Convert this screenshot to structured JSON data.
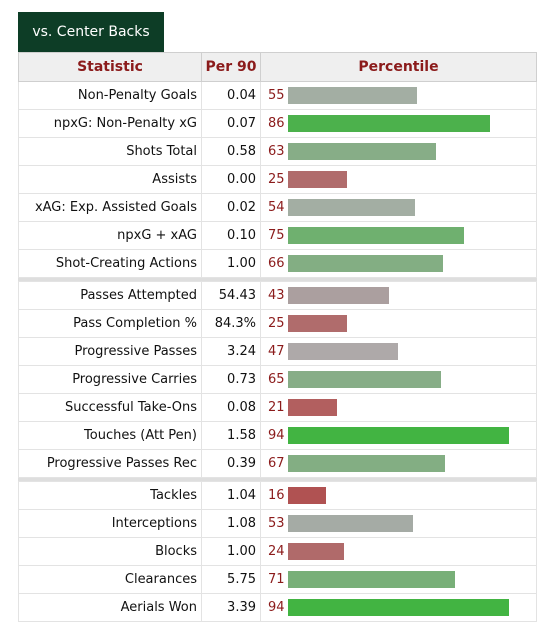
{
  "tab_label": "vs. Center Backs",
  "headers": {
    "statistic": "Statistic",
    "per90": "Per 90",
    "percentile": "Percentile"
  },
  "groups": [
    [
      {
        "stat": "Non-Penalty Goals",
        "per90": "0.04",
        "percentile": 55,
        "color": "#a3aea3"
      },
      {
        "stat": "npxG: Non-Penalty xG",
        "per90": "0.07",
        "percentile": 86,
        "color": "#4cb14c"
      },
      {
        "stat": "Shots Total",
        "per90": "0.58",
        "percentile": 63,
        "color": "#87ad87"
      },
      {
        "stat": "Assists",
        "per90": "0.00",
        "percentile": 25,
        "color": "#b06c6c"
      },
      {
        "stat": "xAG: Exp. Assisted Goals",
        "per90": "0.02",
        "percentile": 54,
        "color": "#a3aea3"
      },
      {
        "stat": "npxG + xAG",
        "per90": "0.10",
        "percentile": 75,
        "color": "#6fb06f"
      },
      {
        "stat": "Shot-Creating Actions",
        "per90": "1.00",
        "percentile": 66,
        "color": "#83ae83"
      }
    ],
    [
      {
        "stat": "Passes Attempted",
        "per90": "54.43",
        "percentile": 43,
        "color": "#ab9f9f"
      },
      {
        "stat": "Pass Completion %",
        "per90": "84.3%",
        "percentile": 25,
        "color": "#b06c6c"
      },
      {
        "stat": "Progressive Passes",
        "per90": "3.24",
        "percentile": 47,
        "color": "#aea9a9"
      },
      {
        "stat": "Progressive Carries",
        "per90": "0.73",
        "percentile": 65,
        "color": "#87ad87"
      },
      {
        "stat": "Successful Take-Ons",
        "per90": "0.08",
        "percentile": 21,
        "color": "#b25f5f"
      },
      {
        "stat": "Touches (Att Pen)",
        "per90": "1.58",
        "percentile": 94,
        "color": "#42b442"
      },
      {
        "stat": "Progressive Passes Rec",
        "per90": "0.39",
        "percentile": 67,
        "color": "#83ae83"
      }
    ],
    [
      {
        "stat": "Tackles",
        "per90": "1.04",
        "percentile": 16,
        "color": "#b05252"
      },
      {
        "stat": "Interceptions",
        "per90": "1.08",
        "percentile": 53,
        "color": "#a5aba5"
      },
      {
        "stat": "Blocks",
        "per90": "1.00",
        "percentile": 24,
        "color": "#b06a6a"
      },
      {
        "stat": "Clearances",
        "per90": "5.75",
        "percentile": 71,
        "color": "#78af78"
      },
      {
        "stat": "Aerials Won",
        "per90": "3.39",
        "percentile": 94,
        "color": "#42b442"
      }
    ]
  ]
}
